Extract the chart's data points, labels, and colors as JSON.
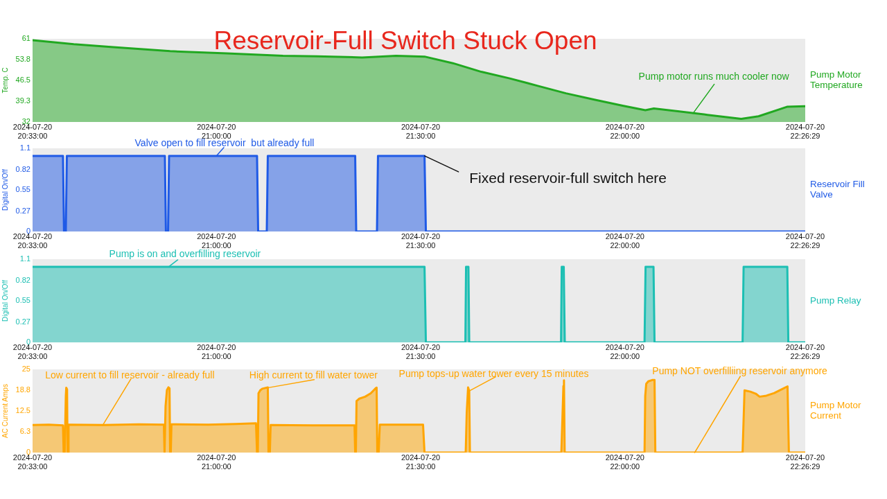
{
  "chart_data": [
    {
      "type": "area",
      "title": "Reservoir-Full Switch Stuck Open",
      "ylabel": "Temp. C",
      "x": [
        "2024-07-20T20:33:00",
        "2024-07-20T20:39:03",
        "2024-07-20T20:44:51",
        "2024-07-20T20:53:12",
        "2024-07-20T21:01:30",
        "2024-07-20T21:09:47",
        "2024-07-20T21:14:47",
        "2024-07-20T21:21:24",
        "2024-07-20T21:26:23",
        "2024-07-20T21:30:34",
        "2024-07-20T21:34:44",
        "2024-07-20T21:38:54",
        "2024-07-20T21:43:05",
        "2024-07-20T21:47:12",
        "2024-07-20T21:51:20",
        "2024-07-20T21:55:30",
        "2024-07-20T21:59:40",
        "2024-07-20T22:03:00",
        "2024-07-20T22:04:15",
        "2024-07-20T22:07:59",
        "2024-07-20T22:12:06",
        "2024-07-20T22:17:05",
        "2024-07-20T22:19:38",
        "2024-07-20T22:23:48",
        "2024-07-20T22:26:29"
      ],
      "series": [
        {
          "name": "Pump Motor Temperature",
          "color": "#21a821",
          "values": [
            60.5,
            59.1,
            58.1,
            56.7,
            55.9,
            55.1,
            54.9,
            54.5,
            55.1,
            54.8,
            52.5,
            49.5,
            47.2,
            44.6,
            42.0,
            39.8,
            37.7,
            36.1,
            36.7,
            35.7,
            34.5,
            33.1,
            34.0,
            37.3,
            37.5
          ]
        }
      ],
      "xlim": [
        "2024-07-20T20:33:00",
        "2024-07-20T22:26:29"
      ],
      "xticks": [
        {
          "value": "2024-07-20T20:33:00",
          "label": "2024-07-20\n20:33:00"
        },
        {
          "value": "2024-07-20T21:00:00",
          "label": "2024-07-20\n21:00:00"
        },
        {
          "value": "2024-07-20T21:30:00",
          "label": "2024-07-20\n21:30:00"
        },
        {
          "value": "2024-07-20T22:00:00",
          "label": "2024-07-20\n22:00:00"
        },
        {
          "value": "2024-07-20T22:26:29",
          "label": "2024-07-20\n22:26:29"
        }
      ],
      "ylim": [
        32,
        61
      ],
      "yticks": [
        32,
        39.3,
        46.5,
        53.8,
        61
      ],
      "annotations": [
        {
          "text": "Pump motor runs much cooler now",
          "x": "2024-07-20T22:10:00",
          "y": 35
        }
      ]
    },
    {
      "type": "area",
      "ylabel": "Digital On/Off",
      "x": [
        "2024-07-20T20:33:00",
        "2024-07-20T20:37:28",
        "2024-07-20T20:37:37",
        "2024-07-20T20:37:53",
        "2024-07-20T20:38:02",
        "2024-07-20T20:52:26",
        "2024-07-20T20:52:35",
        "2024-07-20T20:52:54",
        "2024-07-20T20:53:03",
        "2024-07-20T21:05:58",
        "2024-07-20T21:06:08",
        "2024-07-20T21:07:24",
        "2024-07-20T21:07:33",
        "2024-07-20T21:20:23",
        "2024-07-20T21:20:32",
        "2024-07-20T21:23:35",
        "2024-07-20T21:23:44",
        "2024-07-20T21:30:34",
        "2024-07-20T21:30:46",
        "2024-07-20T22:26:29"
      ],
      "series": [
        {
          "name": "Reservoir Fill Valve",
          "color": "#1f5ae6",
          "values": [
            1,
            1,
            0,
            0,
            1,
            1,
            0,
            0,
            1,
            1,
            0,
            0,
            1,
            1,
            0,
            0,
            1,
            1,
            0,
            0
          ]
        }
      ],
      "xlim": [
        "2024-07-20T20:33:00",
        "2024-07-20T22:26:29"
      ],
      "xticks": [
        {
          "value": "2024-07-20T20:33:00",
          "label": "2024-07-20\n20:33:00"
        },
        {
          "value": "2024-07-20T21:00:00",
          "label": "2024-07-20\n21:00:00"
        },
        {
          "value": "2024-07-20T21:30:00",
          "label": "2024-07-20\n21:30:00"
        },
        {
          "value": "2024-07-20T22:00:00",
          "label": "2024-07-20\n22:00:00"
        },
        {
          "value": "2024-07-20T22:26:29",
          "label": "2024-07-20\n22:26:29"
        }
      ],
      "ylim": [
        0,
        1.1
      ],
      "yticks": [
        0,
        0.27,
        0.55,
        0.82,
        1.1
      ],
      "annotations": [
        {
          "text": "Valve open to fill reservoir  but already full",
          "x": "2024-07-20T21:00:00",
          "y": 1
        },
        {
          "text": "Fixed reservoir-full switch here",
          "x": "2024-07-20T21:30:34",
          "y": 1
        }
      ]
    },
    {
      "type": "area",
      "ylabel": "Digital On/Off",
      "x": [
        "2024-07-20T20:33:00",
        "2024-07-20T21:30:34",
        "2024-07-20T21:30:46",
        "2024-07-20T21:36:34",
        "2024-07-20T21:36:40",
        "2024-07-20T21:37:01",
        "2024-07-20T21:37:08",
        "2024-07-20T21:50:37",
        "2024-07-20T21:50:43",
        "2024-07-20T21:51:01",
        "2024-07-20T21:51:10",
        "2024-07-20T22:02:53",
        "2024-07-20T22:03:02",
        "2024-07-20T22:04:12",
        "2024-07-20T22:04:21",
        "2024-07-20T22:17:17",
        "2024-07-20T22:17:26",
        "2024-07-20T22:23:51",
        "2024-07-20T22:24:00",
        "2024-07-20T22:26:29"
      ],
      "series": [
        {
          "name": "Pump Relay",
          "color": "#1cbfb3",
          "values": [
            1,
            1,
            0,
            0,
            1,
            1,
            0,
            0,
            1,
            1,
            0,
            0,
            1,
            1,
            0,
            0,
            1,
            1,
            0,
            0
          ]
        }
      ],
      "xlim": [
        "2024-07-20T20:33:00",
        "2024-07-20T22:26:29"
      ],
      "xticks": [
        {
          "value": "2024-07-20T20:33:00",
          "label": "2024-07-20\n20:33:00"
        },
        {
          "value": "2024-07-20T21:00:00",
          "label": "2024-07-20\n21:00:00"
        },
        {
          "value": "2024-07-20T21:30:00",
          "label": "2024-07-20\n21:30:00"
        },
        {
          "value": "2024-07-20T22:00:00",
          "label": "2024-07-20\n22:00:00"
        },
        {
          "value": "2024-07-20T22:26:29",
          "label": "2024-07-20\n22:26:29"
        }
      ],
      "ylim": [
        0,
        1.1
      ],
      "yticks": [
        0,
        0.27,
        0.55,
        0.82,
        1.1
      ],
      "annotations": [
        {
          "text": "Pump is on and overfilling reservoir",
          "x": "2024-07-20T20:53:00",
          "y": 1
        }
      ]
    },
    {
      "type": "area",
      "ylabel": "AC Current Amps",
      "x": [
        "2024-07-20T20:33:00",
        "2024-07-20T20:35:23",
        "2024-07-20T20:37:28",
        "2024-07-20T20:37:34",
        "2024-07-20T20:37:43",
        "2024-07-20T20:37:53",
        "2024-07-20T20:37:57",
        "2024-07-20T20:38:04",
        "2024-07-20T20:38:08",
        "2024-07-20T20:38:13",
        "2024-07-20T20:38:17",
        "2024-07-20T20:43:32",
        "2024-07-20T20:48:37",
        "2024-07-20T20:52:17",
        "2024-07-20T20:52:23",
        "2024-07-20T20:52:32",
        "2024-07-20T20:52:44",
        "2024-07-20T20:52:57",
        "2024-07-20T20:53:07",
        "2024-07-20T20:53:12",
        "2024-07-20T20:53:18",
        "2024-07-20T20:53:24",
        "2024-07-20T20:58:48",
        "2024-07-20T21:02:52",
        "2024-07-20T21:05:49",
        "2024-07-20T21:05:58",
        "2024-07-20T21:06:05",
        "2024-07-20T21:06:11",
        "2024-07-20T21:06:26",
        "2024-07-20T21:06:44",
        "2024-07-20T21:07:33",
        "2024-07-20T21:07:39",
        "2024-07-20T21:07:51",
        "2024-07-20T21:07:58",
        "2024-07-20T21:14:04",
        "2024-07-20T21:20:17",
        "2024-07-20T21:20:23",
        "2024-07-20T21:20:29",
        "2024-07-20T21:20:35",
        "2024-07-20T21:20:59",
        "2024-07-20T21:21:51",
        "2024-07-20T21:22:40",
        "2024-07-20T21:23:26",
        "2024-07-20T21:23:32",
        "2024-07-20T21:23:38",
        "2024-07-20T21:23:50",
        "2024-07-20T21:24:00",
        "2024-07-20T21:27:18",
        "2024-07-20T21:30:21",
        "2024-07-20T21:30:34",
        "2024-07-20T21:36:37",
        "2024-07-20T21:36:46",
        "2024-07-20T21:36:58",
        "2024-07-20T21:37:08",
        "2024-07-20T21:37:14",
        "2024-07-20T21:50:40",
        "2024-07-20T21:50:49",
        "2024-07-20T21:50:58",
        "2024-07-20T21:51:03",
        "2024-07-20T21:51:09",
        "2024-07-20T22:02:53",
        "2024-07-20T22:02:59",
        "2024-07-20T22:03:08",
        "2024-07-20T22:03:26",
        "2024-07-20T22:04:00",
        "2024-07-20T22:04:21",
        "2024-07-20T22:04:28",
        "2024-07-20T22:17:17",
        "2024-07-20T22:17:34",
        "2024-07-20T22:18:26",
        "2024-07-20T22:19:13",
        "2024-07-20T22:19:47",
        "2024-07-20T22:20:46",
        "2024-07-20T22:21:56",
        "2024-07-20T22:23:06",
        "2024-07-20T22:23:53",
        "2024-07-20T22:24:05",
        "2024-07-20T22:26:29"
      ],
      "series": [
        {
          "name": "Pump Motor Current",
          "color": "#ffa500",
          "values": [
            8.3,
            8.4,
            8.2,
            0,
            0,
            17,
            19.5,
            19,
            0,
            0,
            8.4,
            8.3,
            8.5,
            8.4,
            0,
            14,
            18.8,
            19.6,
            19.3,
            0,
            0,
            8.5,
            8.4,
            8.6,
            8.8,
            0,
            0,
            17.8,
            18.7,
            19.2,
            19.6,
            0,
            0,
            8.3,
            8.2,
            8.2,
            0,
            0,
            15.5,
            16.2,
            16.8,
            17.8,
            19.4,
            19.5,
            0,
            0,
            8.4,
            8.4,
            8.4,
            0,
            0,
            12,
            19.6,
            18.5,
            0,
            0,
            10,
            20,
            21.7,
            0,
            0,
            17,
            20.7,
            21.4,
            21.8,
            21.8,
            0,
            0,
            18.7,
            18.3,
            17.7,
            16.8,
            17.1,
            17.9,
            19.1,
            19.9,
            0,
            0
          ]
        }
      ],
      "xlim": [
        "2024-07-20T20:33:00",
        "2024-07-20T22:26:29"
      ],
      "xticks": [
        {
          "value": "2024-07-20T20:33:00",
          "label": "2024-07-20\n20:33:00"
        },
        {
          "value": "2024-07-20T21:00:00",
          "label": "2024-07-20\n21:00:00"
        },
        {
          "value": "2024-07-20T21:30:00",
          "label": "2024-07-20\n21:30:00"
        },
        {
          "value": "2024-07-20T22:00:00",
          "label": "2024-07-20\n22:00:00"
        },
        {
          "value": "2024-07-20T22:26:29",
          "label": "2024-07-20\n22:26:29"
        }
      ],
      "ylim": [
        0,
        25
      ],
      "yticks": [
        0,
        6.3,
        12.5,
        18.8,
        25
      ],
      "annotations": [
        {
          "text": "Low current to fill reservoir - already full",
          "x": "2024-07-20T20:43:18",
          "y": 8.2
        },
        {
          "text": "High current to fill water tower",
          "x": "2024-07-20T21:07:20",
          "y": 19.4
        },
        {
          "text": "Pump tops-up water tower every 15 minutes",
          "x": "2024-07-20T21:37:08",
          "y": 18.5
        },
        {
          "text": "Pump NOT overfilliing reservoir anymore",
          "x": "2024-07-20T22:10:15",
          "y": 0
        }
      ]
    }
  ]
}
